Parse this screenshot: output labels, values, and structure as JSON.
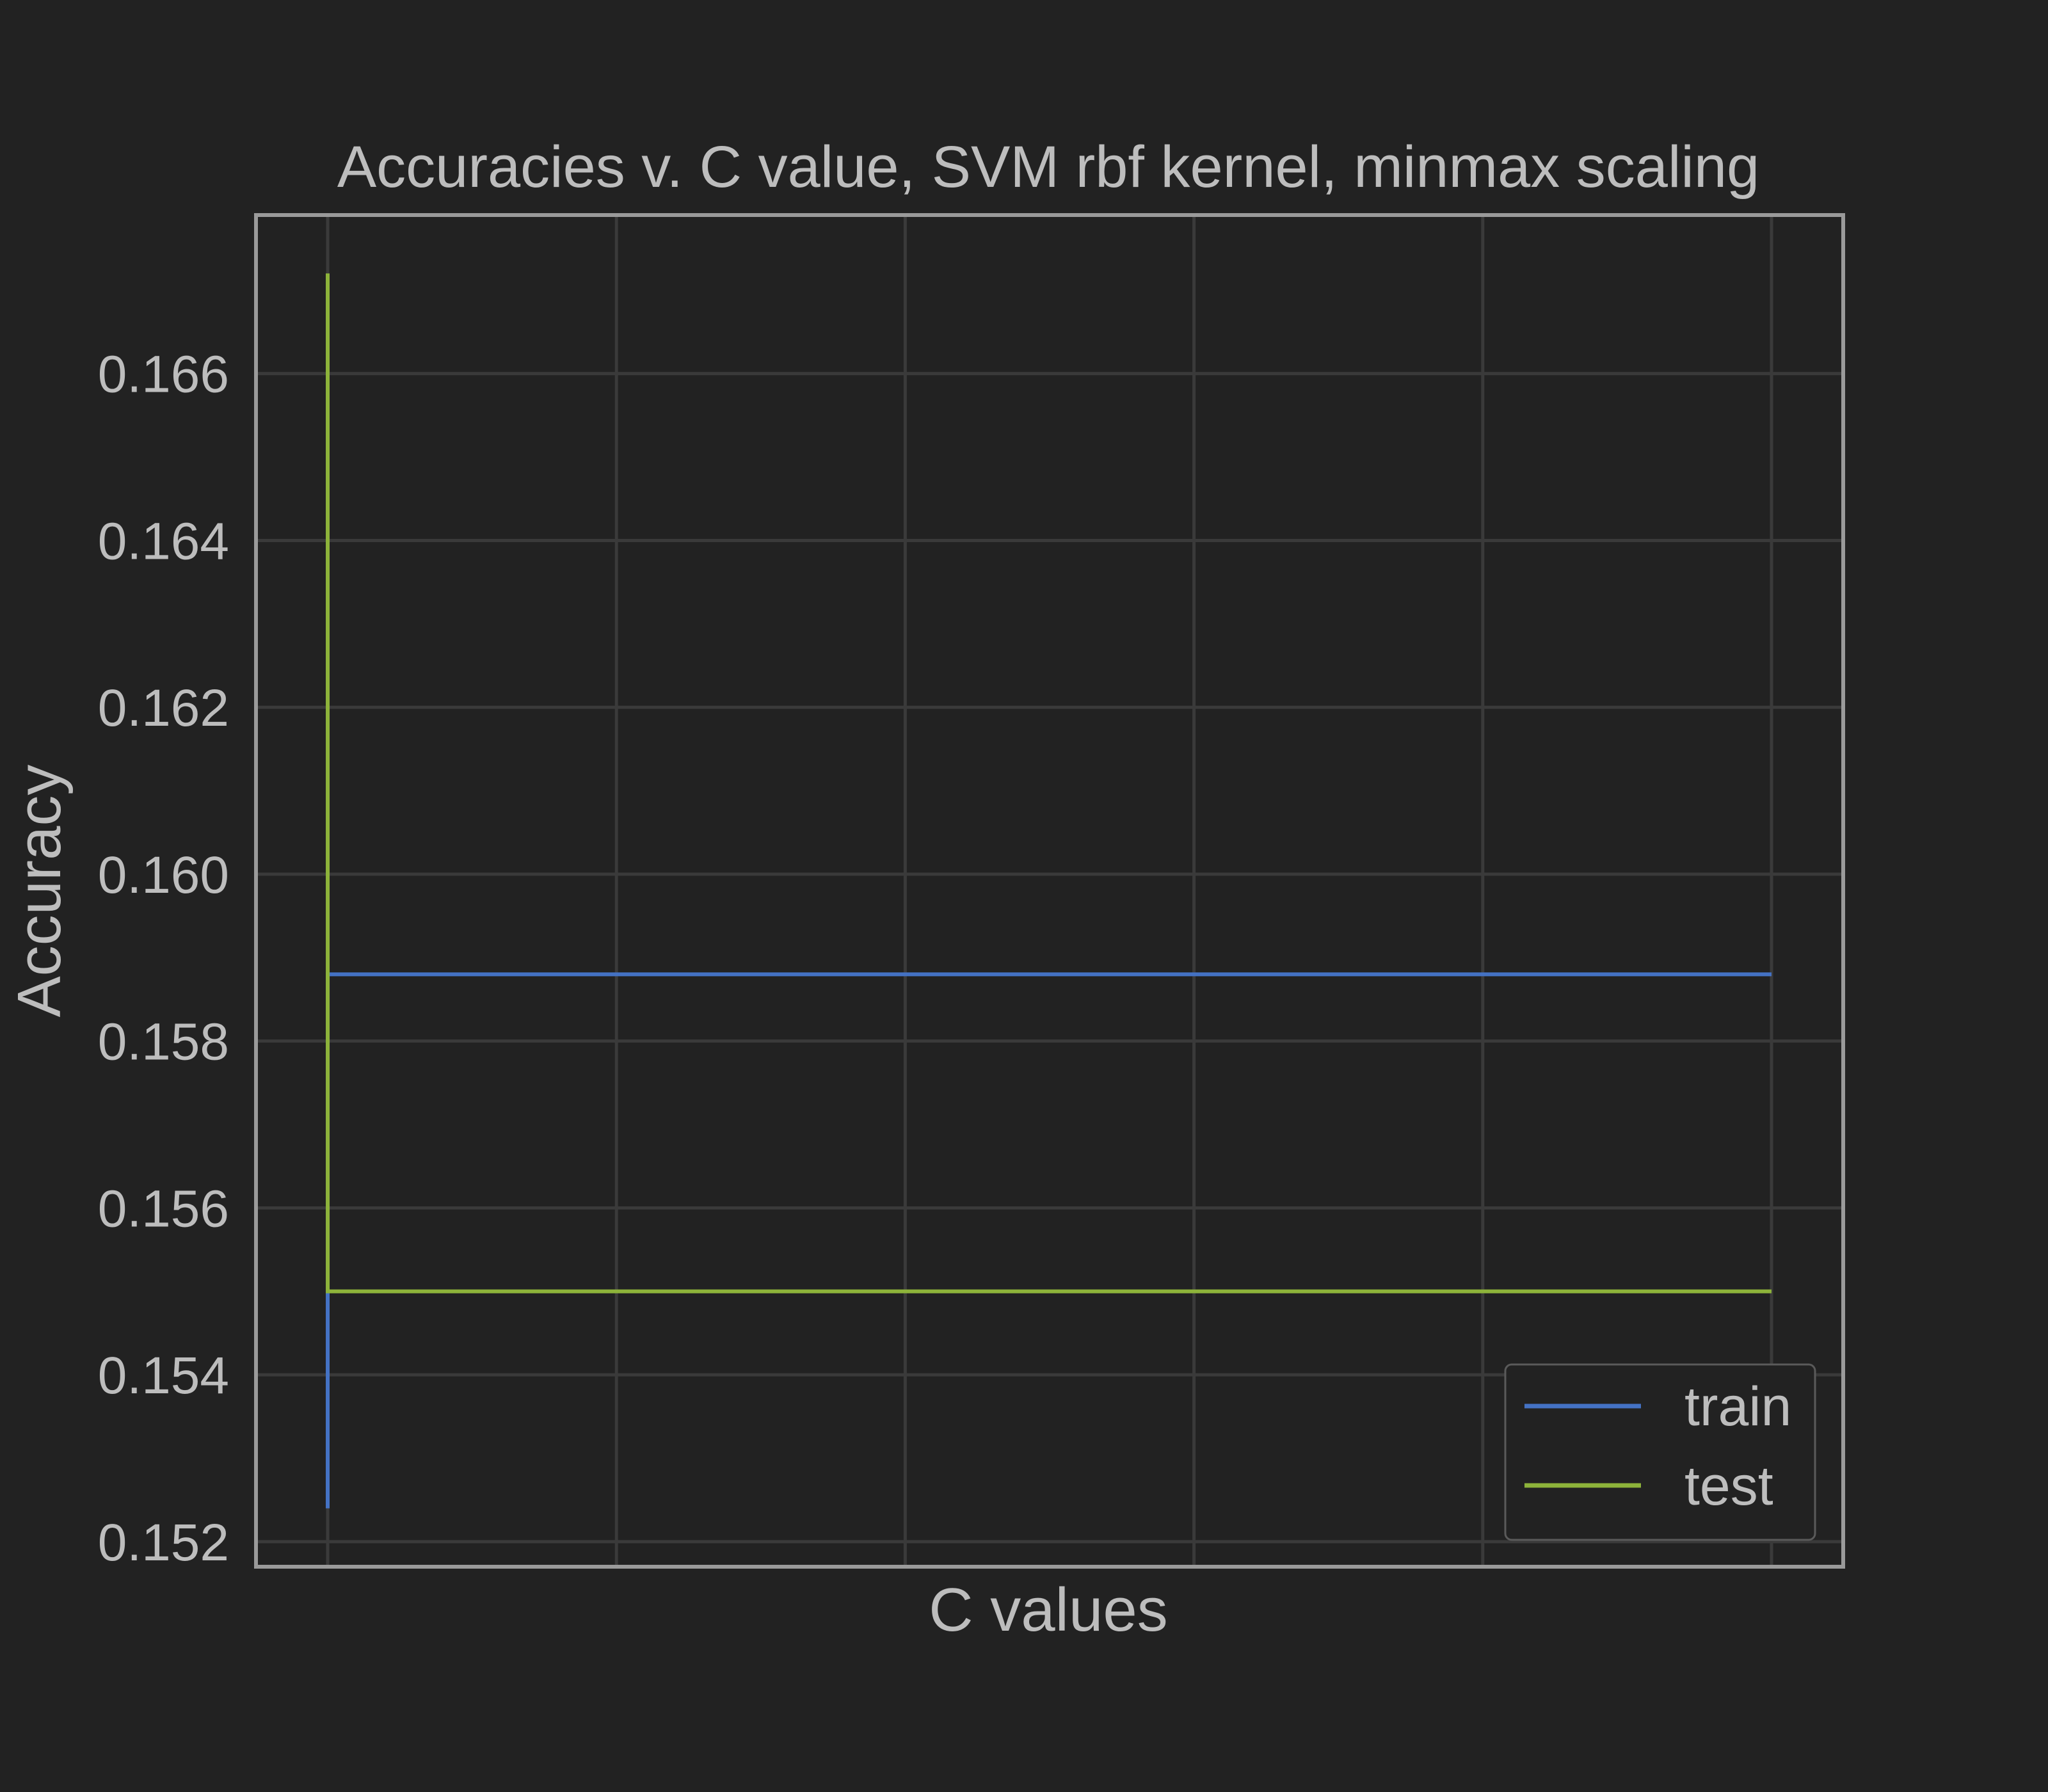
{
  "chart_data": {
    "type": "line",
    "title": "Accuracies v. C value, SVM rbf kernel,  minmax scaling",
    "xlabel": "C values",
    "ylabel": "Accuracy",
    "ylim": [
      0.1517,
      0.1679
    ],
    "x_gridlines": 6,
    "y_ticks": [
      0.152,
      0.154,
      0.156,
      0.158,
      0.16,
      0.162,
      0.164,
      0.166
    ],
    "y_tick_labels": [
      "0.152",
      "0.154",
      "0.156",
      "0.158",
      "0.160",
      "0.162",
      "0.164",
      "0.166"
    ],
    "x": [
      0,
      0.0001,
      1,
      2,
      3,
      4,
      5
    ],
    "series": [
      {
        "name": "train",
        "color": "#4472c4",
        "values": [
          0.1524,
          0.1588,
          0.1588,
          0.1588,
          0.1588,
          0.1588,
          0.1588
        ]
      },
      {
        "name": "test",
        "color": "#8db33a",
        "values": [
          0.1672,
          0.155,
          0.155,
          0.155,
          0.155,
          0.155,
          0.155
        ]
      }
    ],
    "grid": true,
    "legend_position": "lower-right",
    "colors": {
      "background": "#222222",
      "grid": "#3a3a3a",
      "frame": "#9a9a9a",
      "text": "#bdbdbd"
    }
  }
}
